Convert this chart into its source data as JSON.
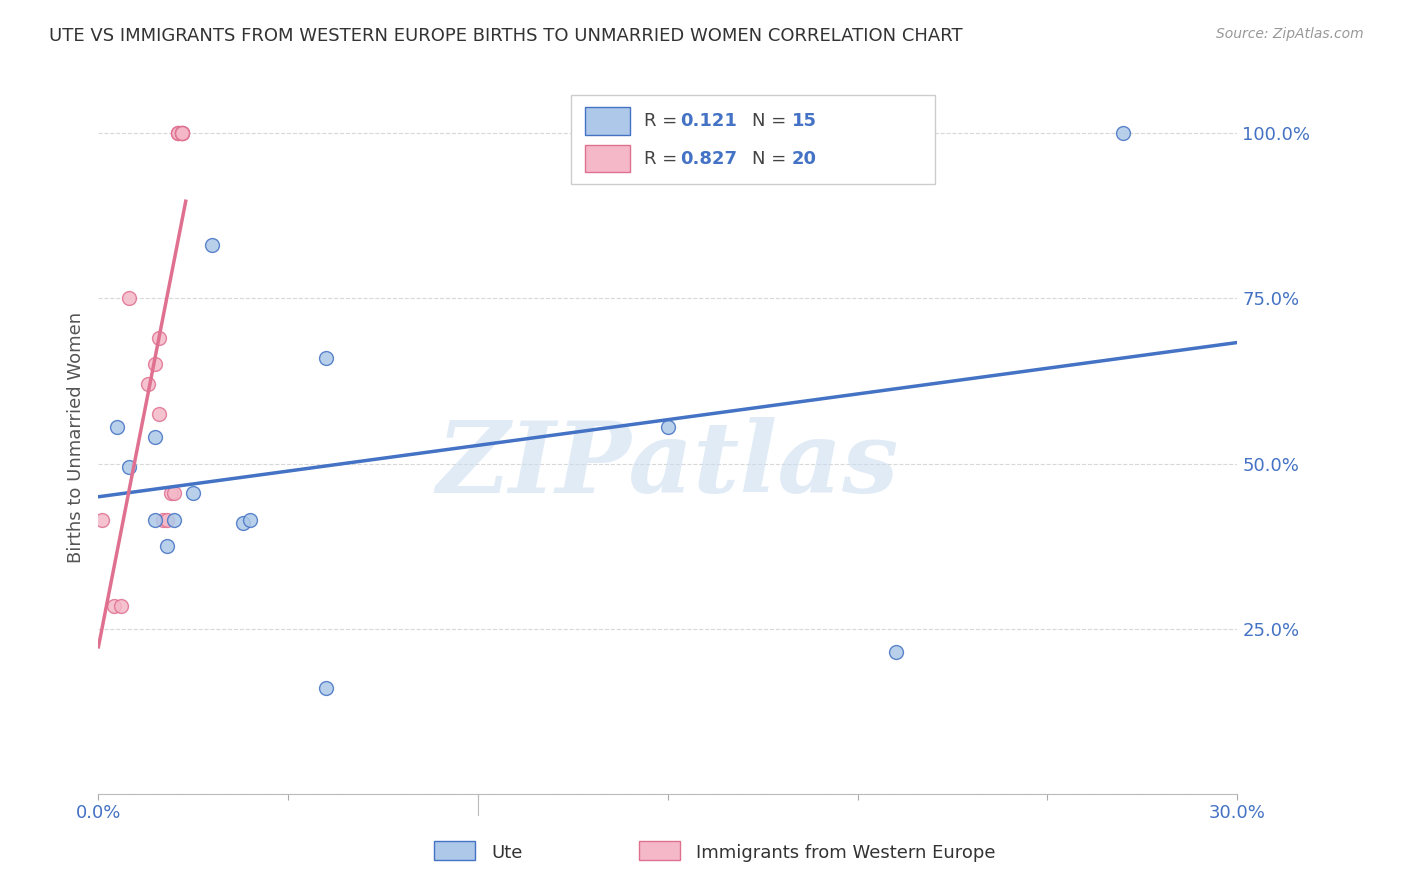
{
  "title": "UTE VS IMMIGRANTS FROM WESTERN EUROPE BIRTHS TO UNMARRIED WOMEN CORRELATION CHART",
  "source": "Source: ZipAtlas.com",
  "ylabel": "Births to Unmarried Women",
  "ute_R": 0.121,
  "ute_N": 15,
  "immig_R": 0.827,
  "immig_N": 20,
  "ute_color": "#adc8e8",
  "ute_line_color": "#4472c4",
  "immig_color": "#f4b8c8",
  "immig_line_color": "#e07090",
  "watermark": "ZIPatlas",
  "background_color": "#ffffff",
  "grid_color": "#d8d8d8",
  "ute_x": [
    0.005,
    0.008,
    0.015,
    0.015,
    0.018,
    0.02,
    0.025,
    0.03,
    0.038,
    0.04,
    0.06,
    0.06,
    0.15,
    0.21,
    0.27
  ],
  "ute_y": [
    0.555,
    0.495,
    0.54,
    0.415,
    0.375,
    0.415,
    0.455,
    0.83,
    0.41,
    0.415,
    0.16,
    0.66,
    0.555,
    0.215,
    1.0
  ],
  "immig_x": [
    0.001,
    0.004,
    0.006,
    0.008,
    0.013,
    0.015,
    0.016,
    0.016,
    0.017,
    0.018,
    0.019,
    0.02,
    0.021,
    0.021,
    0.021,
    0.022,
    0.022,
    0.022,
    0.022,
    0.022
  ],
  "immig_y": [
    0.415,
    0.285,
    0.285,
    0.75,
    0.62,
    0.65,
    0.575,
    0.69,
    0.415,
    0.415,
    0.455,
    0.455,
    1.0,
    1.0,
    1.0,
    1.0,
    1.0,
    1.0,
    1.0,
    1.0
  ],
  "legend_label_ute": "Ute",
  "legend_label_immig": "Immigrants from Western Europe",
  "marker_size": 100,
  "xlim": [
    0.0,
    0.3
  ],
  "ylim": [
    0.0,
    1.08
  ],
  "x_ticks": [
    0.0,
    0.05,
    0.1,
    0.15,
    0.2,
    0.25,
    0.3
  ],
  "y_ticks": [
    0.0,
    0.25,
    0.5,
    0.75,
    1.0
  ],
  "x_tick_labels": [
    "0.0%",
    "",
    "",
    "",
    "",
    "",
    "30.0%"
  ],
  "y_tick_labels": [
    "",
    "25.0%",
    "50.0%",
    "75.0%",
    "100.0%"
  ]
}
